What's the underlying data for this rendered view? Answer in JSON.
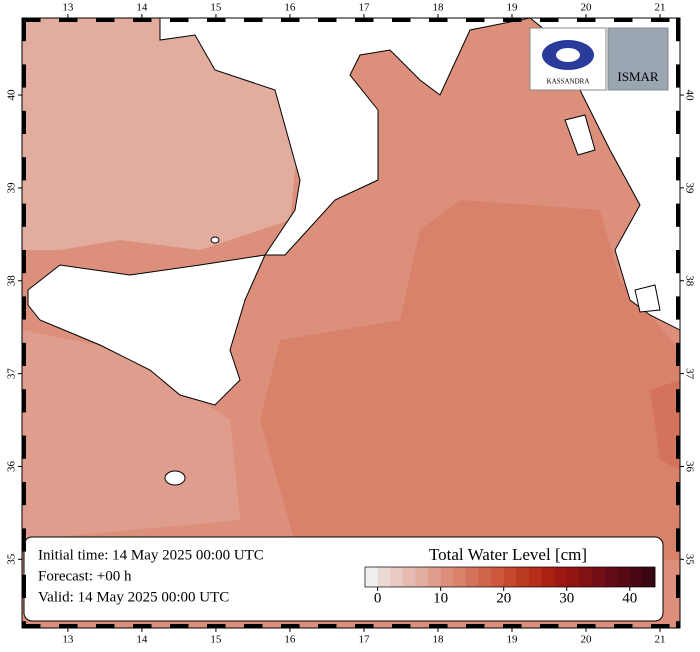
{
  "map": {
    "xlim": [
      12.38,
      21.27
    ],
    "ylim": [
      34.26,
      40.83
    ],
    "xticks": [
      13,
      14,
      15,
      16,
      17,
      18,
      19,
      20,
      21
    ],
    "yticks": [
      35,
      36,
      37,
      38,
      39,
      40
    ],
    "logos": [
      "KASSANDRA",
      "ISMAR"
    ],
    "info": [
      "Initial time: 14 May 2025 00:00 UTC",
      "Forecast: +00 h",
      "Valid: 14 May 2025 00:00 UTC"
    ],
    "colorbar": {
      "title": "Total Water Level [cm]",
      "ticks": [
        0,
        10,
        20,
        30,
        40
      ],
      "range": [
        -2,
        44
      ],
      "colors": [
        "#efefef",
        "#ead9d5",
        "#e8cac3",
        "#e5bbb1",
        "#e2ad9f",
        "#df9e8d",
        "#dc907c",
        "#d8816b",
        "#d4735b",
        "#d0654b",
        "#cc573c",
        "#c4492f",
        "#bc3b23",
        "#b42e19",
        "#aa2112",
        "#9d1810",
        "#8f1412",
        "#801114",
        "#720e15",
        "#630c15",
        "#550a14",
        "#470813",
        "#3a0611"
      ]
    }
  }
}
